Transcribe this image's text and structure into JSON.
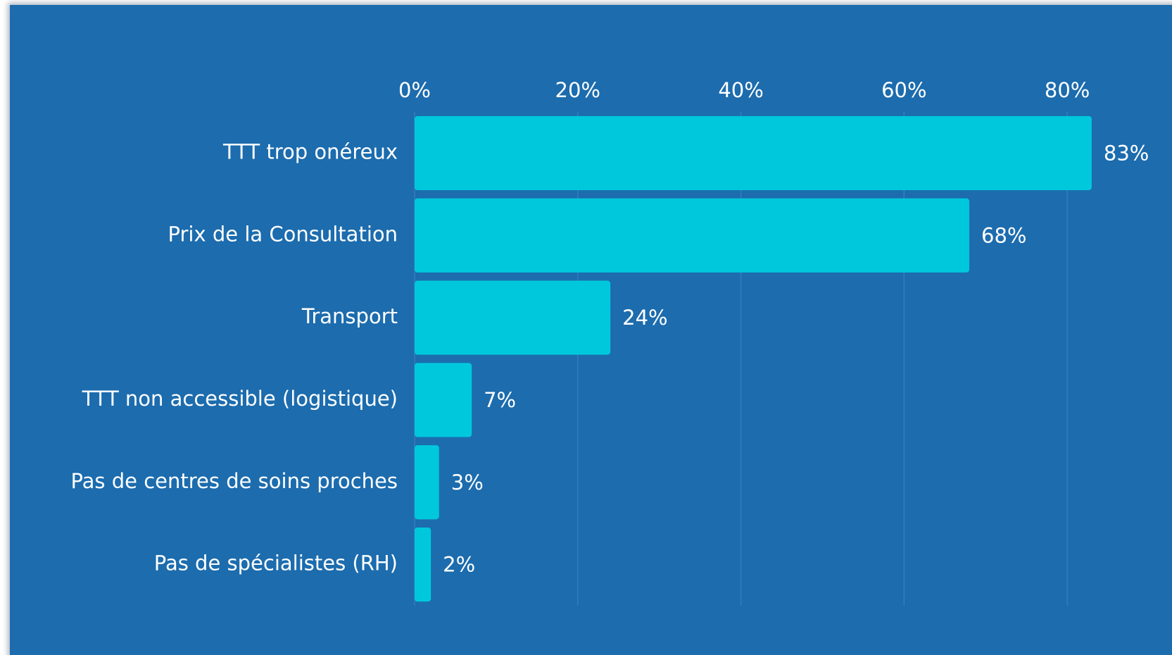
{
  "chart_data": {
    "type": "bar",
    "orientation": "horizontal",
    "categories": [
      "TTT trop onéreux",
      "Prix de la Consultation",
      "Transport",
      "TTT non accessible (logistique)",
      "Pas de centres de soins proches",
      "Pas de spécialistes (RH)"
    ],
    "values": [
      83,
      68,
      24,
      7,
      3,
      2
    ],
    "value_labels": [
      "83%",
      "68%",
      "24%",
      "7%",
      "3%",
      "2%"
    ],
    "color": "#00c8dc",
    "xlim": [
      0,
      90
    ],
    "xticks": [
      {
        "value": 0,
        "label": "0%"
      },
      {
        "value": 20,
        "label": "20%"
      },
      {
        "value": 40,
        "label": "40%"
      },
      {
        "value": 60,
        "label": "60%"
      },
      {
        "value": 80,
        "label": "80%"
      }
    ],
    "grid": true
  }
}
